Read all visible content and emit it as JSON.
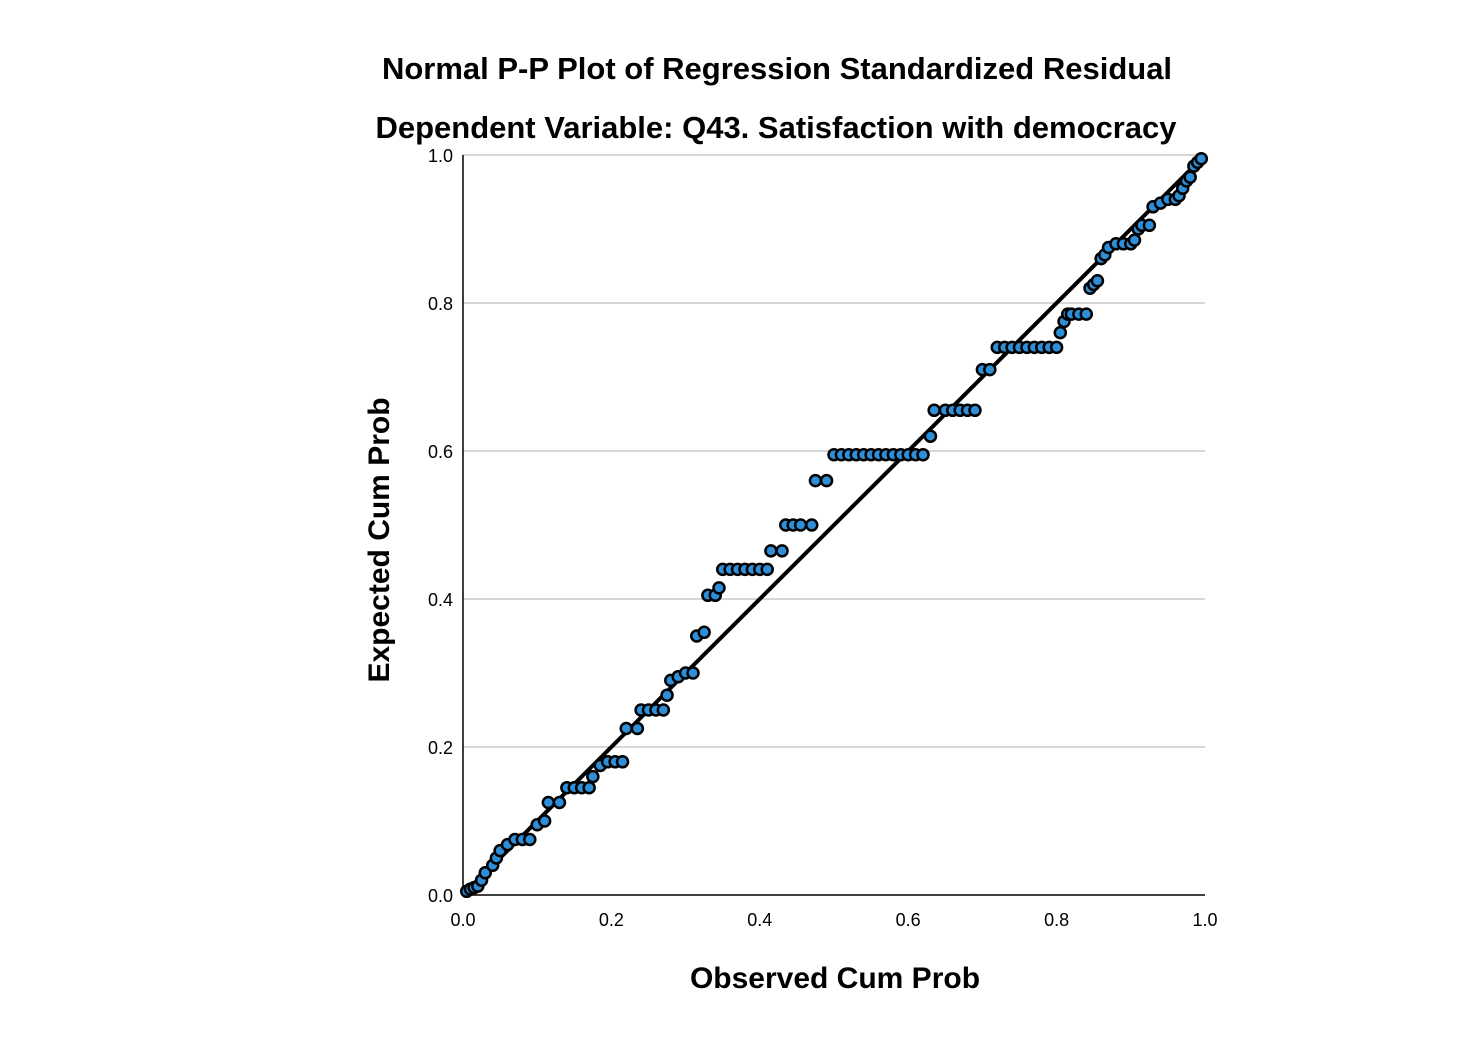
{
  "chart_data": {
    "type": "scatter",
    "title": "Normal P-P Plot of Regression Standardized Residual",
    "subtitle": "Dependent Variable: Q43. Satisfaction with democracy",
    "xlabel": "Observed Cum Prob",
    "ylabel": "Expected Cum Prob",
    "xlim": [
      0,
      1
    ],
    "ylim": [
      0,
      1
    ],
    "x_ticks": [
      "0.0",
      "0.2",
      "0.4",
      "0.6",
      "0.8",
      "1.0"
    ],
    "y_ticks": [
      "0.0",
      "0.2",
      "0.4",
      "0.6",
      "0.8",
      "1.0"
    ],
    "grid": "horizontal",
    "reference_line": {
      "from": [
        0,
        0
      ],
      "to": [
        1,
        1
      ]
    },
    "colors": {
      "point_fill": "#2e8fd8",
      "point_stroke": "#000000",
      "reference_line": "#000000",
      "grid": "#c8c8c8"
    },
    "points": [
      {
        "x": 0.005,
        "y": 0.005
      },
      {
        "x": 0.01,
        "y": 0.008
      },
      {
        "x": 0.015,
        "y": 0.01
      },
      {
        "x": 0.02,
        "y": 0.012
      },
      {
        "x": 0.025,
        "y": 0.02
      },
      {
        "x": 0.03,
        "y": 0.03
      },
      {
        "x": 0.04,
        "y": 0.04
      },
      {
        "x": 0.045,
        "y": 0.05
      },
      {
        "x": 0.05,
        "y": 0.06
      },
      {
        "x": 0.06,
        "y": 0.068
      },
      {
        "x": 0.07,
        "y": 0.075
      },
      {
        "x": 0.08,
        "y": 0.075
      },
      {
        "x": 0.09,
        "y": 0.075
      },
      {
        "x": 0.1,
        "y": 0.095
      },
      {
        "x": 0.11,
        "y": 0.1
      },
      {
        "x": 0.115,
        "y": 0.125
      },
      {
        "x": 0.13,
        "y": 0.125
      },
      {
        "x": 0.14,
        "y": 0.145
      },
      {
        "x": 0.15,
        "y": 0.145
      },
      {
        "x": 0.16,
        "y": 0.145
      },
      {
        "x": 0.17,
        "y": 0.145
      },
      {
        "x": 0.175,
        "y": 0.16
      },
      {
        "x": 0.185,
        "y": 0.175
      },
      {
        "x": 0.195,
        "y": 0.18
      },
      {
        "x": 0.205,
        "y": 0.18
      },
      {
        "x": 0.215,
        "y": 0.18
      },
      {
        "x": 0.22,
        "y": 0.225
      },
      {
        "x": 0.235,
        "y": 0.225
      },
      {
        "x": 0.24,
        "y": 0.25
      },
      {
        "x": 0.25,
        "y": 0.25
      },
      {
        "x": 0.26,
        "y": 0.25
      },
      {
        "x": 0.27,
        "y": 0.25
      },
      {
        "x": 0.275,
        "y": 0.27
      },
      {
        "x": 0.28,
        "y": 0.29
      },
      {
        "x": 0.29,
        "y": 0.295
      },
      {
        "x": 0.3,
        "y": 0.3
      },
      {
        "x": 0.31,
        "y": 0.3
      },
      {
        "x": 0.315,
        "y": 0.35
      },
      {
        "x": 0.325,
        "y": 0.355
      },
      {
        "x": 0.33,
        "y": 0.405
      },
      {
        "x": 0.34,
        "y": 0.405
      },
      {
        "x": 0.345,
        "y": 0.415
      },
      {
        "x": 0.35,
        "y": 0.44
      },
      {
        "x": 0.36,
        "y": 0.44
      },
      {
        "x": 0.37,
        "y": 0.44
      },
      {
        "x": 0.38,
        "y": 0.44
      },
      {
        "x": 0.39,
        "y": 0.44
      },
      {
        "x": 0.4,
        "y": 0.44
      },
      {
        "x": 0.41,
        "y": 0.44
      },
      {
        "x": 0.415,
        "y": 0.465
      },
      {
        "x": 0.43,
        "y": 0.465
      },
      {
        "x": 0.435,
        "y": 0.5
      },
      {
        "x": 0.445,
        "y": 0.5
      },
      {
        "x": 0.455,
        "y": 0.5
      },
      {
        "x": 0.47,
        "y": 0.5
      },
      {
        "x": 0.475,
        "y": 0.56
      },
      {
        "x": 0.49,
        "y": 0.56
      },
      {
        "x": 0.5,
        "y": 0.595
      },
      {
        "x": 0.51,
        "y": 0.595
      },
      {
        "x": 0.52,
        "y": 0.595
      },
      {
        "x": 0.53,
        "y": 0.595
      },
      {
        "x": 0.54,
        "y": 0.595
      },
      {
        "x": 0.55,
        "y": 0.595
      },
      {
        "x": 0.56,
        "y": 0.595
      },
      {
        "x": 0.57,
        "y": 0.595
      },
      {
        "x": 0.58,
        "y": 0.595
      },
      {
        "x": 0.59,
        "y": 0.595
      },
      {
        "x": 0.6,
        "y": 0.595
      },
      {
        "x": 0.61,
        "y": 0.595
      },
      {
        "x": 0.62,
        "y": 0.595
      },
      {
        "x": 0.63,
        "y": 0.62
      },
      {
        "x": 0.635,
        "y": 0.655
      },
      {
        "x": 0.65,
        "y": 0.655
      },
      {
        "x": 0.66,
        "y": 0.655
      },
      {
        "x": 0.67,
        "y": 0.655
      },
      {
        "x": 0.68,
        "y": 0.655
      },
      {
        "x": 0.69,
        "y": 0.655
      },
      {
        "x": 0.7,
        "y": 0.71
      },
      {
        "x": 0.71,
        "y": 0.71
      },
      {
        "x": 0.72,
        "y": 0.74
      },
      {
        "x": 0.73,
        "y": 0.74
      },
      {
        "x": 0.74,
        "y": 0.74
      },
      {
        "x": 0.75,
        "y": 0.74
      },
      {
        "x": 0.76,
        "y": 0.74
      },
      {
        "x": 0.77,
        "y": 0.74
      },
      {
        "x": 0.78,
        "y": 0.74
      },
      {
        "x": 0.79,
        "y": 0.74
      },
      {
        "x": 0.8,
        "y": 0.74
      },
      {
        "x": 0.805,
        "y": 0.76
      },
      {
        "x": 0.81,
        "y": 0.775
      },
      {
        "x": 0.815,
        "y": 0.785
      },
      {
        "x": 0.82,
        "y": 0.785
      },
      {
        "x": 0.83,
        "y": 0.785
      },
      {
        "x": 0.84,
        "y": 0.785
      },
      {
        "x": 0.845,
        "y": 0.82
      },
      {
        "x": 0.85,
        "y": 0.825
      },
      {
        "x": 0.855,
        "y": 0.83
      },
      {
        "x": 0.86,
        "y": 0.86
      },
      {
        "x": 0.865,
        "y": 0.865
      },
      {
        "x": 0.87,
        "y": 0.875
      },
      {
        "x": 0.88,
        "y": 0.88
      },
      {
        "x": 0.89,
        "y": 0.88
      },
      {
        "x": 0.9,
        "y": 0.88
      },
      {
        "x": 0.905,
        "y": 0.885
      },
      {
        "x": 0.91,
        "y": 0.9
      },
      {
        "x": 0.915,
        "y": 0.905
      },
      {
        "x": 0.925,
        "y": 0.905
      },
      {
        "x": 0.93,
        "y": 0.93
      },
      {
        "x": 0.94,
        "y": 0.935
      },
      {
        "x": 0.95,
        "y": 0.94
      },
      {
        "x": 0.96,
        "y": 0.94
      },
      {
        "x": 0.965,
        "y": 0.945
      },
      {
        "x": 0.97,
        "y": 0.955
      },
      {
        "x": 0.975,
        "y": 0.965
      },
      {
        "x": 0.98,
        "y": 0.97
      },
      {
        "x": 0.985,
        "y": 0.985
      },
      {
        "x": 0.99,
        "y": 0.99
      },
      {
        "x": 0.995,
        "y": 0.995
      }
    ]
  }
}
